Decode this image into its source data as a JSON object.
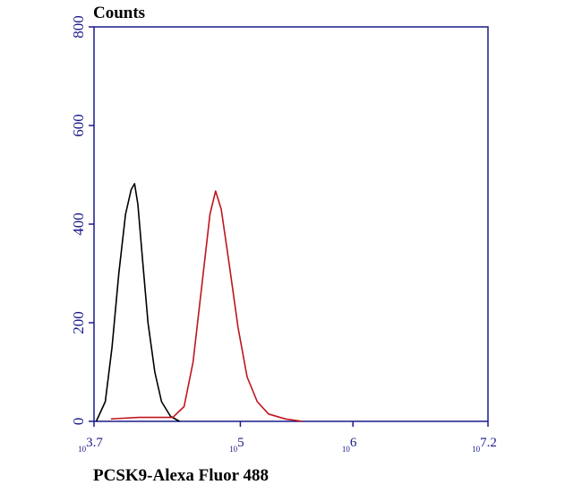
{
  "chart_data": {
    "type": "line",
    "title": "Counts",
    "x_label": "PCSK9-Alexa Fluor 488",
    "xscale": "log",
    "xlim": [
      5011.87,
      15848932
    ],
    "ylim": [
      0,
      800
    ],
    "xticks": [
      {
        "value": 5011.87,
        "label": "10",
        "exponent": "3.7"
      },
      {
        "value": 100000,
        "label": "10",
        "exponent": "5"
      },
      {
        "value": 1000000,
        "label": "10",
        "exponent": "6"
      },
      {
        "value": 15848932,
        "label": "10",
        "exponent": "7.2"
      }
    ],
    "yticks": [
      0,
      200,
      400,
      600,
      800
    ],
    "axis_color": "#1a1a8c",
    "series": [
      {
        "color": "#000000",
        "x": [
          5248,
          6310,
          7244,
          8318,
          9550,
          10715,
          11482,
          12303,
          13490,
          15136,
          17378,
          19953,
          23988,
          28840
        ],
        "values": [
          0,
          40,
          150,
          300,
          420,
          470,
          482,
          440,
          330,
          200,
          100,
          40,
          10,
          0
        ]
      },
      {
        "color": "#c0141e",
        "x": [
          7079,
          12589,
          25119,
          31623,
          38019,
          45709,
          53703,
          60256,
          67608,
          79433,
          95499,
          114815,
          141254,
          177828,
          251189,
          354813
        ],
        "values": [
          5,
          8,
          8,
          30,
          120,
          280,
          420,
          467,
          430,
          320,
          190,
          90,
          40,
          15,
          5,
          0
        ]
      }
    ]
  }
}
